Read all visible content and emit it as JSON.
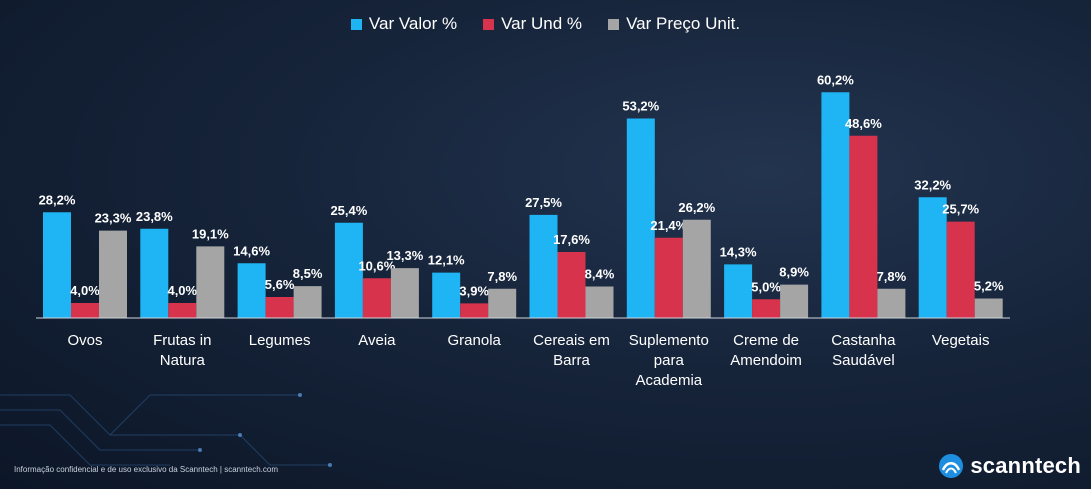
{
  "chart_data": {
    "type": "bar",
    "title": "",
    "xlabel": "",
    "ylabel": "",
    "ylim": [
      0,
      65
    ],
    "grid": false,
    "legend_position": "top-center",
    "categories": [
      [
        "Ovos"
      ],
      [
        "Frutas in",
        "Natura"
      ],
      [
        "Legumes"
      ],
      [
        "Aveia"
      ],
      [
        "Granola"
      ],
      [
        "Cereais em",
        "Barra"
      ],
      [
        "Suplemento",
        "para",
        "Academia"
      ],
      [
        "Creme de",
        "Amendoim"
      ],
      [
        "Castanha",
        "Saudável"
      ],
      [
        "Vegetais"
      ]
    ],
    "series": [
      {
        "name": "Var Valor %",
        "color": "#1fb4f4",
        "values": [
          28.2,
          23.8,
          14.6,
          25.4,
          12.1,
          27.5,
          53.2,
          14.3,
          60.2,
          32.2
        ],
        "labels": [
          "28,2%",
          "23,8%",
          "14,6%",
          "25,4%",
          "12,1%",
          "27,5%",
          "53,2%",
          "14,3%",
          "60,2%",
          "32,2%"
        ]
      },
      {
        "name": "Var Und %",
        "color": "#d8334c",
        "values": [
          4.0,
          4.0,
          5.6,
          10.6,
          3.9,
          17.6,
          21.4,
          5.0,
          48.6,
          25.7
        ],
        "labels": [
          "4,0%",
          "4,0%",
          "5,6%",
          "10,6%",
          "3,9%",
          "17,6%",
          "21,4%",
          "5,0%",
          "48,6%",
          "25,7%"
        ]
      },
      {
        "name": "Var Preço Unit.",
        "color": "#a5a5a5",
        "values": [
          23.3,
          19.1,
          8.5,
          13.3,
          7.8,
          8.4,
          26.2,
          8.9,
          7.8,
          5.2
        ],
        "labels": [
          "23,3%",
          "19,1%",
          "8,5%",
          "13,3%",
          "7,8%",
          "8,4%",
          "26,2%",
          "8,9%",
          "7,8%",
          "5,2%"
        ]
      }
    ]
  },
  "footer": {
    "note": "Informação confidencial e de uso exclusivo da Scanntech | scanntech.com"
  },
  "brand": {
    "name": "scanntech",
    "icon": "scanntech-logo-icon",
    "accent": "#1e8fe0"
  }
}
